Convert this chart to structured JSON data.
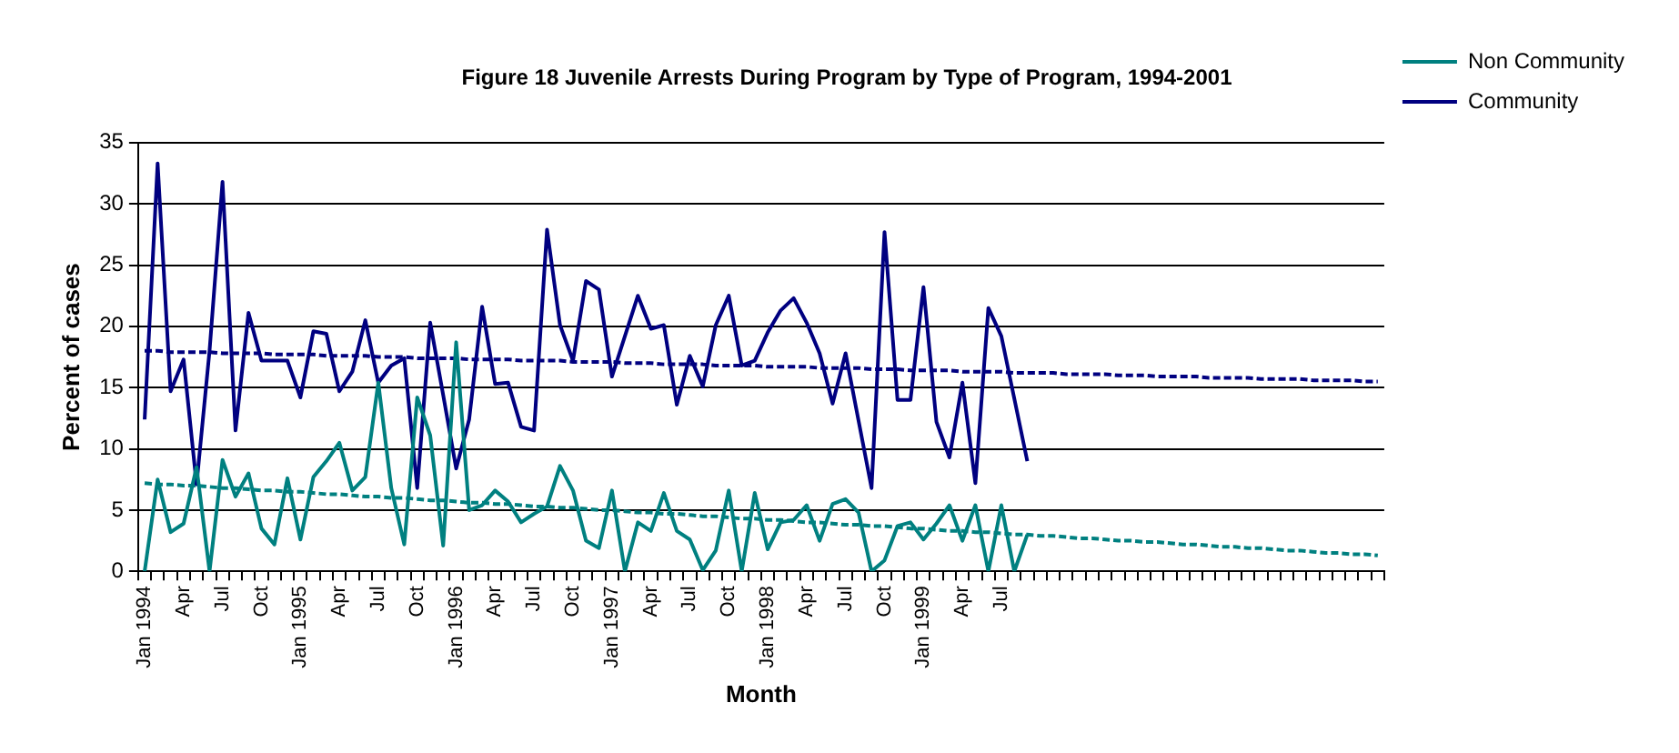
{
  "chart_data": {
    "type": "line",
    "title": "Figure 18 Juvenile Arrests During Program by Type of Program, 1994-2001",
    "xlabel": "Month",
    "ylabel": "Percent of cases",
    "categories": [
      "Jan 1994",
      null,
      null,
      "Apr",
      null,
      null,
      "Jul",
      null,
      null,
      "Oct",
      null,
      null,
      "Jan 1995",
      null,
      null,
      "Apr",
      null,
      null,
      "Jul",
      null,
      null,
      "Oct",
      null,
      null,
      "Jan 1996",
      null,
      null,
      "Apr",
      null,
      null,
      "Jul",
      null,
      null,
      "Oct",
      null,
      null,
      "Jan 1997",
      null,
      null,
      "Apr",
      null,
      null,
      "Jul",
      null,
      null,
      "Oct",
      null,
      null,
      "Jan 1998",
      null,
      null,
      "Apr",
      null,
      null,
      "Jul",
      null,
      null,
      "Oct",
      null,
      null,
      "Jan 1999",
      null,
      null,
      "Apr",
      null,
      null,
      "Jul",
      null,
      null,
      null,
      null,
      null,
      null,
      null,
      null,
      null,
      null,
      null,
      null,
      null,
      null,
      null,
      null,
      null,
      null,
      null,
      null,
      null,
      null,
      null,
      null,
      null,
      null,
      null,
      null,
      null
    ],
    "ylim": [
      0,
      35
    ],
    "yticks": [
      0,
      5,
      10,
      15,
      20,
      25,
      30,
      35
    ],
    "grid": "y",
    "legend": "top right",
    "marker": "none",
    "series": [
      {
        "name": "Non Community",
        "color": "#008080",
        "line_style": "solid",
        "values": [
          0,
          7.5,
          3.2,
          3.9,
          8.5,
          0,
          9.1,
          6.1,
          8.0,
          3.5,
          2.2,
          7.6,
          2.6,
          7.7,
          9.0,
          10.5,
          6.6,
          7.7,
          15.4,
          6.8,
          2.2,
          14.2,
          11.1,
          2.1,
          18.7,
          5.0,
          5.4,
          6.6,
          5.7,
          4.0,
          4.7,
          5.3,
          8.6,
          6.6,
          2.5,
          1.9,
          6.6,
          0,
          4.0,
          3.3,
          6.4,
          3.3,
          2.6,
          0.1,
          1.7,
          6.6,
          0,
          6.4,
          1.8,
          4.0,
          4.2,
          5.4,
          2.5,
          5.5,
          5.9,
          4.8,
          0,
          0.9,
          3.7,
          4.0,
          2.6,
          3.9,
          5.4,
          2.5,
          5.4,
          0,
          5.4,
          0,
          3.0,
          null,
          null,
          null,
          null,
          null,
          null,
          null,
          null,
          null,
          null,
          null,
          null,
          null,
          null,
          null,
          null,
          null,
          null,
          null,
          null,
          null,
          null,
          null,
          null,
          null,
          null,
          null
        ]
      },
      {
        "name": "Community",
        "color": "#000080",
        "line_style": "solid",
        "values": [
          12.4,
          33.3,
          14.7,
          17.3,
          7.1,
          18.0,
          31.8,
          11.5,
          21.1,
          17.2,
          17.2,
          17.2,
          14.2,
          19.6,
          19.4,
          14.7,
          16.3,
          20.5,
          15.4,
          16.8,
          17.4,
          6.8,
          20.3,
          14.4,
          8.4,
          12.4,
          21.6,
          15.3,
          15.4,
          11.8,
          11.5,
          27.9,
          20.1,
          17.2,
          23.7,
          23.0,
          15.9,
          19.2,
          22.5,
          19.8,
          20.1,
          13.6,
          17.6,
          15.1,
          20.1,
          22.5,
          16.8,
          17.2,
          19.5,
          21.3,
          22.3,
          20.3,
          17.8,
          13.7,
          17.8,
          12.3,
          6.8,
          27.7,
          14.0,
          14.0,
          23.2,
          12.2,
          9.3,
          15.4,
          7.2,
          21.5,
          19.2,
          14.1,
          9.0,
          null,
          null,
          null,
          null,
          null,
          null,
          null,
          null,
          null,
          null,
          null,
          null,
          null,
          null,
          null,
          null,
          null,
          null,
          null,
          null,
          null,
          null,
          null,
          null,
          null,
          null,
          null
        ]
      },
      {
        "type": "line",
        "color": "#008080",
        "line_style": "dashed",
        "values": [
          7.2,
          7.1,
          7.1,
          7.0,
          7.0,
          6.9,
          6.8,
          6.8,
          6.7,
          6.6,
          6.6,
          6.5,
          6.5,
          6.4,
          6.3,
          6.3,
          6.2,
          6.1,
          6.1,
          6.0,
          6.0,
          5.9,
          5.8,
          5.8,
          5.7,
          5.6,
          5.6,
          5.5,
          5.5,
          5.4,
          5.3,
          5.3,
          5.2,
          5.2,
          5.1,
          5.0,
          5.0,
          4.9,
          4.8,
          4.8,
          4.7,
          4.7,
          4.6,
          4.5,
          4.5,
          4.4,
          4.3,
          4.3,
          4.2,
          4.2,
          4.1,
          4.0,
          4.0,
          3.9,
          3.8,
          3.8,
          3.7,
          3.7,
          3.6,
          3.5,
          3.5,
          3.4,
          3.3,
          3.3,
          3.2,
          3.2,
          3.1,
          3.0,
          3.0,
          2.9,
          2.9,
          2.8,
          2.7,
          2.7,
          2.6,
          2.5,
          2.5,
          2.4,
          2.4,
          2.3,
          2.2,
          2.2,
          2.1,
          2.0,
          2.0,
          1.9,
          1.9,
          1.8,
          1.7,
          1.7,
          1.6,
          1.5,
          1.5,
          1.4,
          1.4,
          1.3
        ]
      },
      {
        "type": "line",
        "color": "#000080",
        "line_style": "dashed",
        "values": [
          18.0,
          18.0,
          17.9,
          17.9,
          17.9,
          17.9,
          17.8,
          17.8,
          17.8,
          17.8,
          17.7,
          17.7,
          17.7,
          17.7,
          17.6,
          17.6,
          17.6,
          17.6,
          17.5,
          17.5,
          17.5,
          17.4,
          17.4,
          17.4,
          17.4,
          17.3,
          17.3,
          17.3,
          17.3,
          17.2,
          17.2,
          17.2,
          17.2,
          17.1,
          17.1,
          17.1,
          17.1,
          17.0,
          17.0,
          17.0,
          16.9,
          16.9,
          16.9,
          16.9,
          16.8,
          16.8,
          16.8,
          16.8,
          16.7,
          16.7,
          16.7,
          16.7,
          16.6,
          16.6,
          16.6,
          16.6,
          16.5,
          16.5,
          16.5,
          16.4,
          16.4,
          16.4,
          16.4,
          16.3,
          16.3,
          16.3,
          16.3,
          16.2,
          16.2,
          16.2,
          16.2,
          16.1,
          16.1,
          16.1,
          16.1,
          16.0,
          16.0,
          16.0,
          15.9,
          15.9,
          15.9,
          15.9,
          15.8,
          15.8,
          15.8,
          15.8,
          15.7,
          15.7,
          15.7,
          15.7,
          15.6,
          15.6,
          15.6,
          15.6,
          15.5,
          15.5
        ]
      }
    ]
  }
}
